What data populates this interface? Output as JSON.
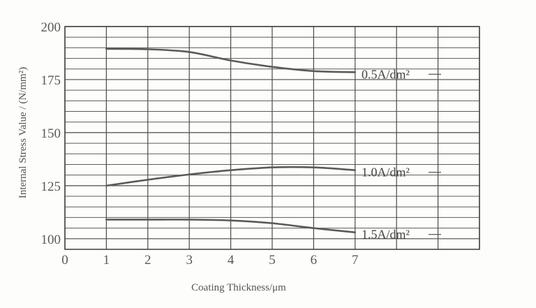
{
  "chart_data": {
    "type": "line",
    "xlabel": "Coating Thickness/μm",
    "ylabel": "Internal Stress Value / (N/mm²)",
    "xlim": [
      0,
      10
    ],
    "ylim": [
      95,
      200
    ],
    "x_ticks": [
      "0",
      "1",
      "2",
      "3",
      "4",
      "5",
      "6",
      "7"
    ],
    "y_ticks": [
      "100",
      "125",
      "150",
      "175",
      "200"
    ],
    "grid": true,
    "series": [
      {
        "name": "0.5A/dm²",
        "x": [
          1,
          2,
          3,
          4,
          5,
          6,
          7
        ],
        "y": [
          189.5,
          189.3,
          188,
          184,
          181,
          179,
          178.5
        ]
      },
      {
        "name": "1.0A/dm²",
        "x": [
          1,
          2,
          3,
          4,
          5,
          6,
          7
        ],
        "y": [
          125,
          127.8,
          130.3,
          132.3,
          133.6,
          133.6,
          132.3
        ]
      },
      {
        "name": "1.5A/dm²",
        "x": [
          1,
          2,
          3,
          4,
          5,
          6,
          7
        ],
        "y": [
          109,
          109,
          109,
          108.6,
          107.3,
          105,
          103
        ]
      }
    ]
  }
}
